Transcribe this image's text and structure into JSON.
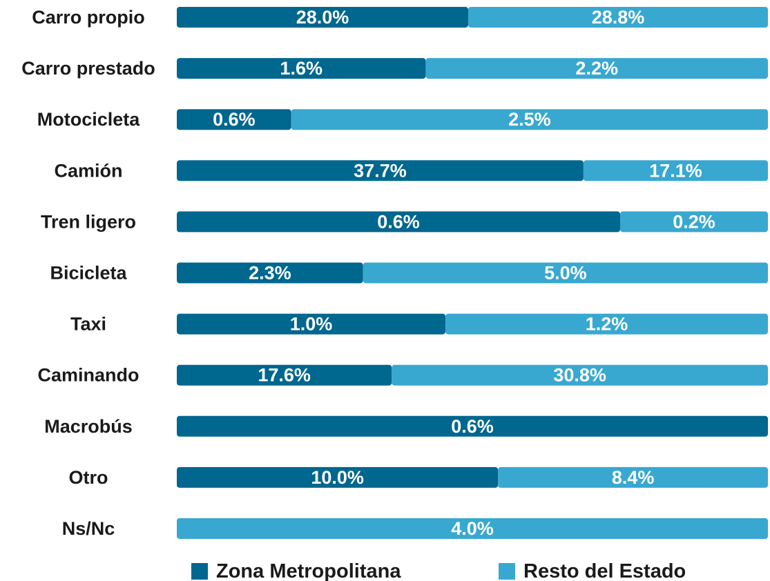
{
  "chart_data": {
    "type": "bar",
    "stacked": "percent",
    "orientation": "horizontal",
    "categories": [
      "Carro propio",
      "Carro prestado",
      "Motocicleta",
      "Camión",
      "Tren ligero",
      "Bicicleta",
      "Taxi",
      "Caminando",
      "Macrobús",
      "Otro",
      "Ns/Nc"
    ],
    "series": [
      {
        "name": "Zona Metropolitana",
        "color": "#00678f",
        "values": [
          28.0,
          1.6,
          0.6,
          37.7,
          0.6,
          2.3,
          1.0,
          17.6,
          0.6,
          10.0,
          null
        ],
        "value_labels": [
          "28.0%",
          "1.6%",
          "0.6%",
          "37.7%",
          "0.6%",
          "2.3%",
          "1.0%",
          "17.6%",
          "0.6%",
          "10.0%",
          null
        ]
      },
      {
        "name": "Resto del Estado",
        "color": "#38a8d0",
        "values": [
          28.8,
          2.2,
          2.5,
          17.1,
          0.2,
          5.0,
          1.2,
          30.8,
          null,
          8.4,
          4.0
        ],
        "value_labels": [
          "28.8%",
          "2.2%",
          "2.5%",
          "17.1%",
          "0.2%",
          "5.0%",
          "1.2%",
          "30.8%",
          null,
          "8.4%",
          "4.0%"
        ]
      }
    ]
  }
}
